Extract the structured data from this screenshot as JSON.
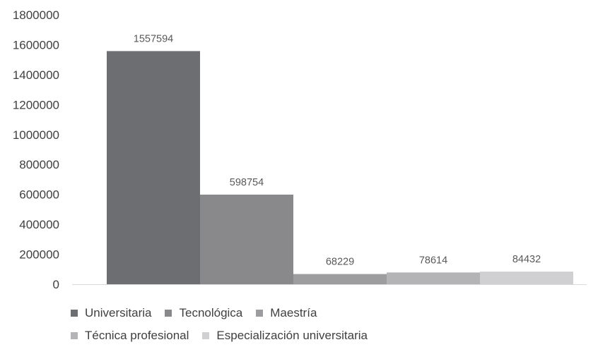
{
  "chart_data": {
    "type": "bar",
    "title": "",
    "xlabel": "",
    "ylabel": "",
    "ylim": [
      0,
      1800000
    ],
    "yticks": [
      "0",
      "200000",
      "400000",
      "600000",
      "800000",
      "1000000",
      "1200000",
      "1400000",
      "1600000",
      "1800000"
    ],
    "grid": false,
    "legend_position": "bottom",
    "series": [
      {
        "name": "Universitaria",
        "value": 1557594,
        "label": "1557594",
        "color": "#6d6e71"
      },
      {
        "name": "Tecnológica",
        "value": 598754,
        "label": "598754",
        "color": "#89898c"
      },
      {
        "name": "Maestría",
        "value": 68229,
        "label": "68229",
        "color": "#9d9d9f"
      },
      {
        "name": "Técnica profesional",
        "value": 78614,
        "label": "78614",
        "color": "#b4b4b6"
      },
      {
        "name": "Especialización universitaria",
        "value": 84432,
        "label": "84432",
        "color": "#d0d0d2"
      }
    ]
  }
}
